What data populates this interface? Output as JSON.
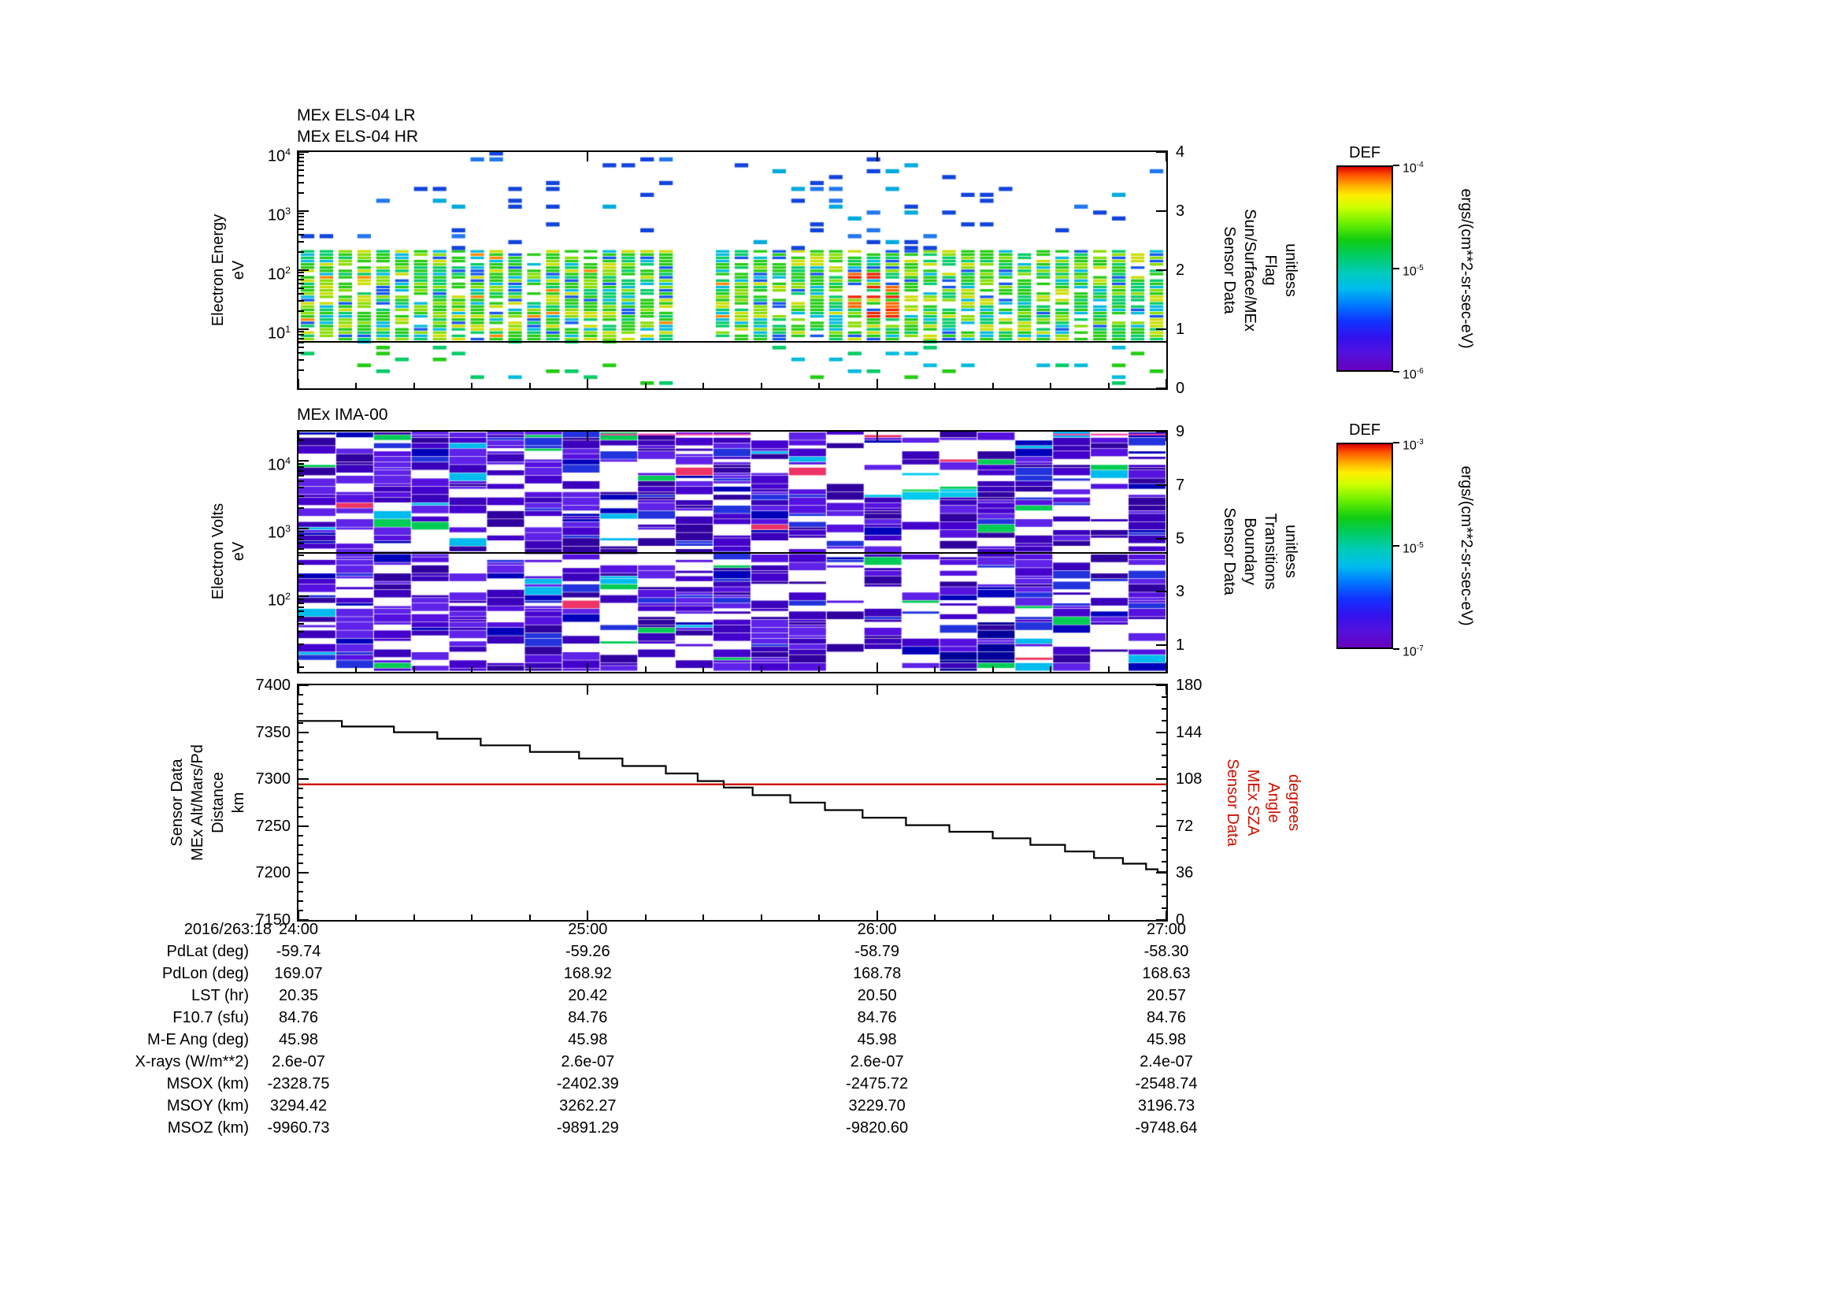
{
  "colors": {
    "background": "#ffffff",
    "axis": "#000000",
    "altitude_line": "#000000",
    "sza_line": "#cc1100",
    "sza_label": "#cc1100"
  },
  "panel_els": {
    "title_lr": "MEx ELS-04 LR",
    "title_hr": "MEx ELS-04 HR",
    "ylabel_lines": [
      "Electron Energy",
      "eV"
    ],
    "ytick_exponents": [
      4,
      3,
      2,
      1
    ],
    "right_label_lines": [
      "Sensor Data",
      "Sun/Surface/MEx",
      "Flag",
      "unitless"
    ],
    "right_ticks": [
      4,
      3,
      2,
      1,
      0
    ],
    "flag_line_value": 0.8
  },
  "panel_ima": {
    "title": "MEx IMA-00",
    "ylabel_lines": [
      "Electron Volts",
      "eV"
    ],
    "ytick_exponents": [
      4,
      3,
      2
    ],
    "right_label_lines": [
      "Sensor Data",
      "Boundary",
      "Transitions",
      "unitless"
    ],
    "right_ticks": [
      9,
      7,
      5,
      3,
      1
    ],
    "boundary_line_value": 4.5
  },
  "panel_alt": {
    "left_label_lines": [
      "Sensor Data",
      "MEx Alt/Mars/Pd",
      "Distance",
      "km"
    ],
    "left_ticks": [
      7400,
      7350,
      7300,
      7250,
      7200,
      7150
    ],
    "right_label_lines": [
      "Sensor Data",
      "MEx SZA",
      "Angle",
      "degrees"
    ],
    "right_ticks": [
      180,
      144,
      108,
      72,
      36,
      0
    ]
  },
  "time_axis": {
    "prefix": "2016/263:18",
    "ticks": [
      "24:00",
      "25:00",
      "26:00",
      "27:00"
    ]
  },
  "colorbars": [
    {
      "title": "DEF",
      "tick_exponents": [
        -4,
        -5,
        -6
      ],
      "units": "ergs/(cm**2-sr-sec-eV)"
    },
    {
      "title": "DEF",
      "tick_exponents": [
        -3,
        -5,
        -7
      ],
      "units": "ergs/(cm**2-sr-sec-eV)"
    }
  ],
  "metadata_rows": [
    {
      "label": "PdLat (deg)",
      "values": [
        "-59.74",
        "-59.26",
        "-58.79",
        "-58.30"
      ]
    },
    {
      "label": "PdLon (deg)",
      "values": [
        "169.07",
        "168.92",
        "168.78",
        "168.63"
      ]
    },
    {
      "label": "LST (hr)",
      "values": [
        "20.35",
        "20.42",
        "20.50",
        "20.57"
      ]
    },
    {
      "label": "F10.7 (sfu)",
      "values": [
        "84.76",
        "84.76",
        "84.76",
        "84.76"
      ]
    },
    {
      "label": "M-E Ang (deg)",
      "values": [
        "45.98",
        "45.98",
        "45.98",
        "45.98"
      ]
    },
    {
      "label": "X-rays (W/m**2)",
      "values": [
        "2.6e-07",
        "2.6e-07",
        "2.6e-07",
        "2.4e-07"
      ]
    },
    {
      "label": "MSOX (km)",
      "values": [
        "-2328.75",
        "-2402.39",
        "-2475.72",
        "-2548.74"
      ]
    },
    {
      "label": "MSOY (km)",
      "values": [
        "3294.42",
        "3262.27",
        "3229.70",
        "3196.73"
      ]
    },
    {
      "label": "MSOZ (km)",
      "values": [
        "-9960.73",
        "-9891.29",
        "-9820.60",
        "-9748.64"
      ]
    }
  ],
  "chart_data": [
    {
      "type": "heatmap",
      "title": "MEx ELS-04 LR / MEx ELS-04 HR",
      "ylabel": "Electron Energy eV",
      "y_scale": "log",
      "ylim": [
        1,
        10000
      ],
      "x_start": "2016/263:18 24:00",
      "x_ticks": [
        "24:00",
        "25:00",
        "26:00",
        "27:00"
      ],
      "right_axis": {
        "label": "Sensor Data Sun/Surface/MEx Flag unitless",
        "ylim": [
          0,
          4
        ],
        "flag_value": 0.8
      },
      "colorbar": {
        "title": "DEF",
        "units": "ergs/(cm**2-sr-sec-eV)",
        "min": 1e-06,
        "max": 0.0001
      },
      "content_summary": "Dense electron flux 6-250 eV shown as green/yellow/cyan vertical sweep columns with an orange-red enhancement just before 26:00; sparse blue dashes from 300 eV to 10 keV; intermittent green/cyan flux below 6 eV; black flag line near 0.8; scattered data-gap columns",
      "render": {
        "seed": 20163,
        "columns": 46,
        "dense_band_log": [
          0.8,
          2.3
        ],
        "hot_columns": [
          29,
          31
        ]
      }
    },
    {
      "type": "heatmap",
      "title": "MEx IMA-00",
      "ylabel": "Electron Volts eV",
      "y_scale": "log",
      "ylim": [
        7.8,
        27000
      ],
      "x_ticks": [
        "24:00",
        "25:00",
        "26:00",
        "27:00"
      ],
      "right_axis": {
        "label": "Sensor Data Boundary Transitions unitless",
        "ylim": [
          0,
          9
        ],
        "line_value": 4.5
      },
      "colorbar": {
        "title": "DEF",
        "units": "ergs/(cm**2-sr-sec-eV)",
        "min": 1e-07,
        "max": 0.001
      },
      "content_summary": "Ion spectrogram dominated by blue-violet horizontal stripes across all energies with blocky white data gaps, cyan/green enhancement near 3000-7000 eV around 26:10-26:30, dark navy patches at low energy, magenta streaks at the top edge, black line near boundary value 4.5",
      "render": {
        "seed": 877,
        "blocks": 23,
        "log_top": 4.43,
        "log_bottom": 0.89
      }
    },
    {
      "type": "line",
      "xlim_hours": [
        24,
        27
      ],
      "x_ticks": [
        "24:00",
        "25:00",
        "26:00",
        "27:00"
      ],
      "left_axis": {
        "label": "Sensor Data MEx Alt/Mars/Pd Distance km",
        "ylim": [
          7150,
          7400
        ]
      },
      "right_axis": {
        "label": "Sensor Data MEx SZA Angle degrees",
        "ylim": [
          0,
          180
        ]
      },
      "series": [
        {
          "name": "MEx Alt/Mars/Pd Distance",
          "axis": "left",
          "color": "#000000",
          "style": "steps",
          "steps": [
            [
              24.0,
              7362
            ],
            [
              24.15,
              7356
            ],
            [
              24.33,
              7350
            ],
            [
              24.48,
              7343
            ],
            [
              24.63,
              7336
            ],
            [
              24.8,
              7329
            ],
            [
              24.97,
              7322
            ],
            [
              25.12,
              7314
            ],
            [
              25.27,
              7306
            ],
            [
              25.38,
              7298
            ],
            [
              25.47,
              7291
            ],
            [
              25.57,
              7283
            ],
            [
              25.7,
              7275
            ],
            [
              25.82,
              7267
            ],
            [
              25.95,
              7259
            ],
            [
              26.1,
              7251
            ],
            [
              26.25,
              7244
            ],
            [
              26.4,
              7237
            ],
            [
              26.53,
              7230
            ],
            [
              26.65,
              7223
            ],
            [
              26.75,
              7216
            ],
            [
              26.85,
              7210
            ],
            [
              26.93,
              7204
            ],
            [
              26.97,
              7201
            ]
          ]
        },
        {
          "name": "MEx SZA Angle",
          "axis": "right",
          "color": "#cc1100",
          "style": "constant",
          "value": 104
        }
      ]
    }
  ]
}
